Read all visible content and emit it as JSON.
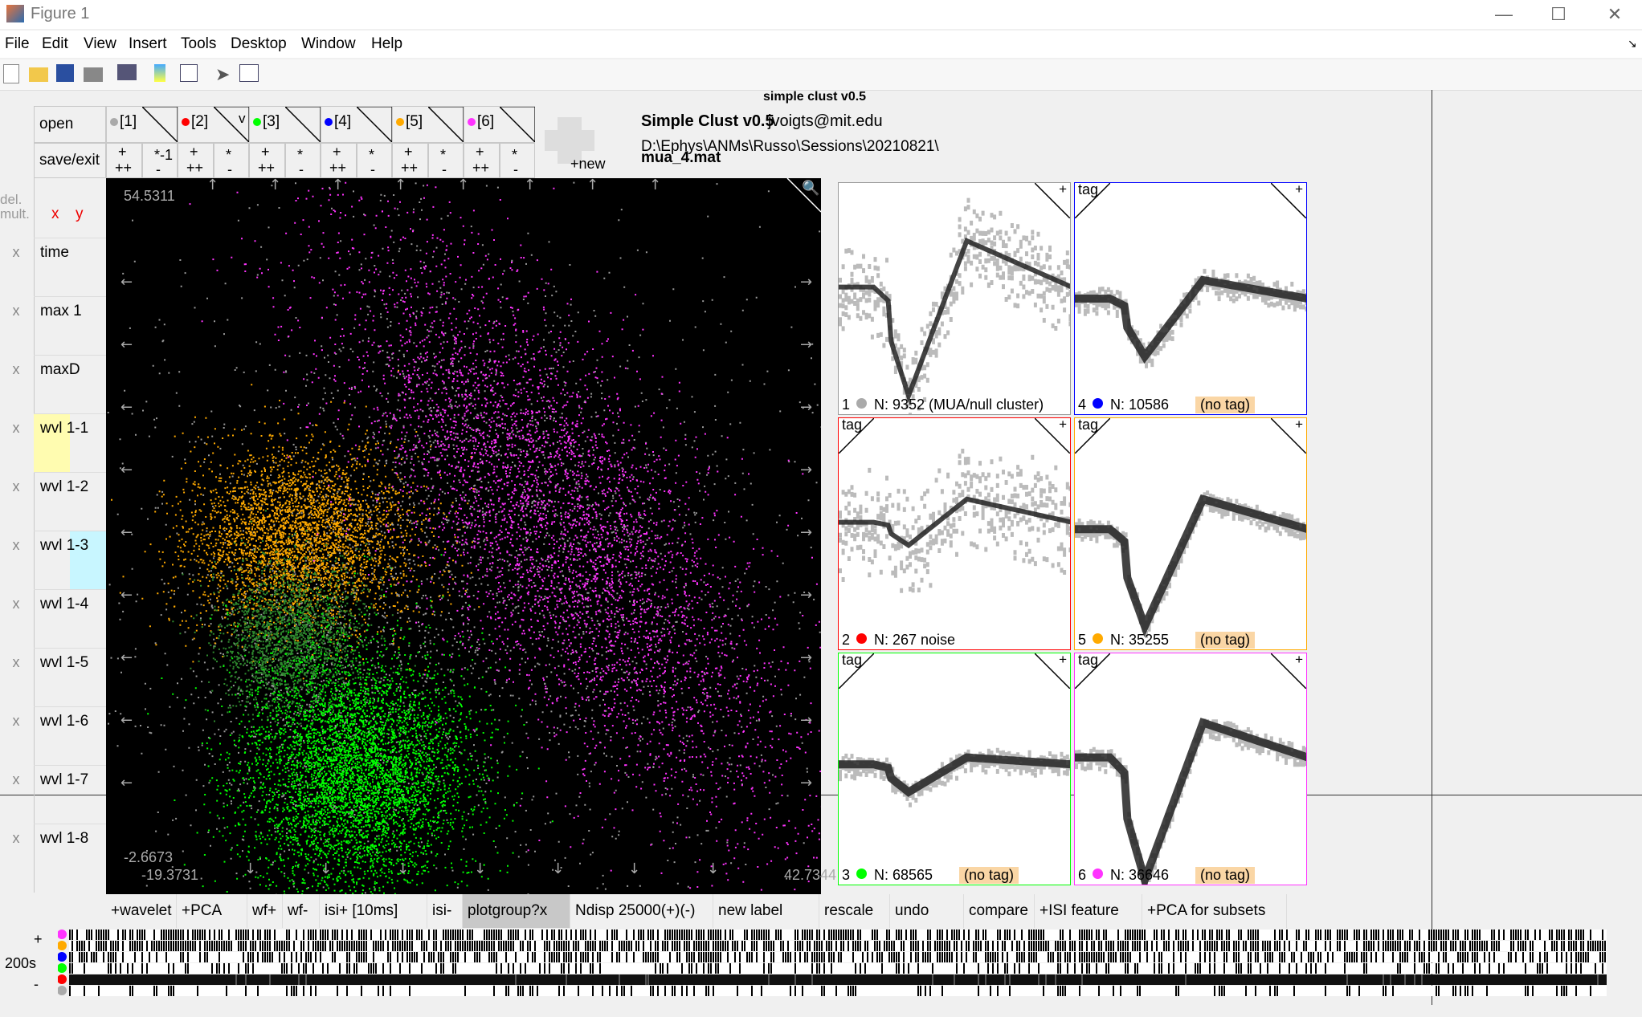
{
  "window": {
    "title": "Figure 1"
  },
  "menu": [
    "File",
    "Edit",
    "View",
    "Insert",
    "Tools",
    "Desktop",
    "Window",
    "Help"
  ],
  "figure_title": "simple clust v0.5",
  "header": {
    "app": "Simple Clust v0.5",
    "email": "jvoigts@mit.edu",
    "path": "D:\\Ephys\\ANMs\\Russo\\Sessions\\20210821\\",
    "file": "mua_4.mat"
  },
  "left_buttons": {
    "open": "open",
    "save_exit": "save/exit",
    "del_mult": "del. mult.",
    "x": "x",
    "y": "y"
  },
  "clusters_tabs": [
    {
      "label": "[1]",
      "color": "#aaaaaa"
    },
    {
      "label": "[2]",
      "color": "#ff0000"
    },
    {
      "label": "[3]",
      "color": "#00ff00"
    },
    {
      "label": "[4]",
      "color": "#0000ff"
    },
    {
      "label": "[5]",
      "color": "#ffaa00"
    },
    {
      "label": "[6]",
      "color": "#ff33ff"
    }
  ],
  "tab_controls": {
    "plus": "+",
    "plusplus": "++",
    "minus": "-",
    "star": "*",
    "star_m1": "*-1",
    "v": "v",
    "new": "+new"
  },
  "features": [
    {
      "x": "x",
      "label": "time"
    },
    {
      "x": "x",
      "label": "max 1"
    },
    {
      "x": "x",
      "label": "maxD"
    },
    {
      "x": "x",
      "label": "wvl 1-1"
    },
    {
      "x": "x",
      "label": "wvl 1-2"
    },
    {
      "x": "x",
      "label": "wvl 1-3"
    },
    {
      "x": "x",
      "label": "wvl 1-4"
    },
    {
      "x": "x",
      "label": "wvl 1-5"
    },
    {
      "x": "x",
      "label": "wvl 1-6"
    },
    {
      "x": "x",
      "label": "wvl 1-7"
    },
    {
      "x": "x",
      "label": "wvl 1-8"
    }
  ],
  "scatter": {
    "ymax": "54.5311",
    "ymin": "-2.6673",
    "xmin": "-19.3731",
    "xmax": "42.7344"
  },
  "waveforms": [
    {
      "id": "1",
      "label": "N: 9352 (MUA/null cluster)",
      "tag": "",
      "color": "#aaaaaa"
    },
    {
      "id": "4",
      "label": "N: 10586",
      "tag": "(no tag)",
      "color": "#0000ff"
    },
    {
      "id": "2",
      "label": "N: 267 noise",
      "tag": "",
      "color": "#ff0000"
    },
    {
      "id": "5",
      "label": "N: 35255",
      "tag": "(no tag)",
      "color": "#ffaa00"
    },
    {
      "id": "3",
      "label": "N: 68565",
      "tag": "(no tag)",
      "color": "#00ff00"
    },
    {
      "id": "6",
      "label": "N: 36646",
      "tag": "(no tag)",
      "color": "#ff33ff"
    }
  ],
  "wf_tag": "tag",
  "wf_plus": "+",
  "bottom_buttons": [
    "+wavelet",
    "+PCA",
    "wf+",
    "wf-",
    "isi+ [10ms]",
    "isi-",
    "plotgroup?x",
    "Ndisp 25000(+)(-)",
    "new label",
    "rescale",
    "undo",
    "compare",
    "+ISI feature",
    "+PCA for subsets"
  ],
  "timeline": {
    "plus": "+",
    "minus": "-",
    "scale": "200s"
  }
}
